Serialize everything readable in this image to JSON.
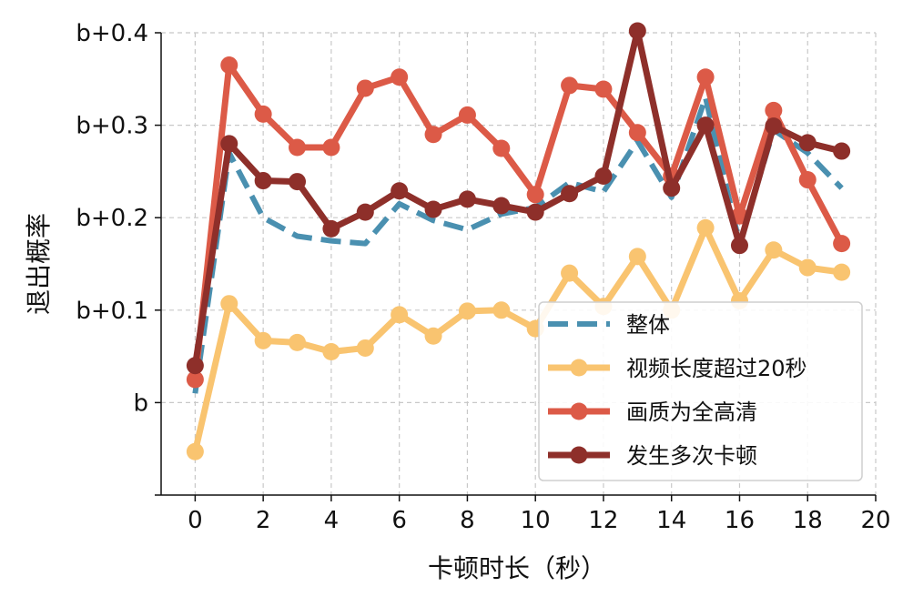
{
  "chart_data": {
    "type": "line",
    "xlabel": "卡顿时长（秒）",
    "ylabel": "退出概率",
    "xlim": [
      -1,
      20
    ],
    "ylim": [
      -0.1,
      0.4
    ],
    "grid": true,
    "legend_position": "lower-right",
    "x_ticks": [
      0,
      2,
      4,
      6,
      8,
      10,
      12,
      14,
      16,
      18,
      20
    ],
    "y_ticks": [
      0,
      0.1,
      0.2,
      0.3,
      0.4
    ],
    "y_tick_labels": [
      "b",
      "b+0.1",
      "b+0.2",
      "b+0.3",
      "b+0.4"
    ],
    "x": [
      0,
      1,
      2,
      3,
      4,
      5,
      6,
      7,
      8,
      9,
      10,
      11,
      12,
      13,
      14,
      15,
      16,
      17,
      18,
      19
    ],
    "series": [
      {
        "name": "整体",
        "color": "#4a90b0",
        "style": "dashed",
        "marker": false,
        "values": [
          0.01,
          0.27,
          0.2,
          0.18,
          0.175,
          0.172,
          0.215,
          0.197,
          0.187,
          0.204,
          0.211,
          0.238,
          0.228,
          0.283,
          0.222,
          0.33,
          0.172,
          0.295,
          0.27,
          0.232
        ]
      },
      {
        "name": "视频长度超过20秒",
        "color": "#f9c470",
        "style": "solid",
        "marker": true,
        "values": [
          -0.053,
          0.107,
          0.067,
          0.065,
          0.055,
          0.059,
          0.095,
          0.072,
          0.099,
          0.1,
          0.08,
          0.14,
          0.104,
          0.158,
          0.1,
          0.189,
          0.11,
          0.165,
          0.146,
          0.141
        ]
      },
      {
        "name": "画质为全高清",
        "color": "#dc5a47",
        "style": "solid",
        "marker": true,
        "values": [
          0.025,
          0.365,
          0.312,
          0.276,
          0.276,
          0.34,
          0.352,
          0.29,
          0.311,
          0.275,
          0.225,
          0.343,
          0.339,
          0.292,
          0.245,
          0.352,
          0.202,
          0.316,
          0.241,
          0.172
        ]
      },
      {
        "name": "发生多次卡顿",
        "color": "#8e2f2a",
        "style": "solid",
        "marker": true,
        "values": [
          0.04,
          0.28,
          0.24,
          0.239,
          0.188,
          0.206,
          0.229,
          0.209,
          0.22,
          0.213,
          0.206,
          0.226,
          0.245,
          0.402,
          0.232,
          0.3,
          0.17,
          0.299,
          0.281,
          0.272
        ]
      }
    ]
  }
}
